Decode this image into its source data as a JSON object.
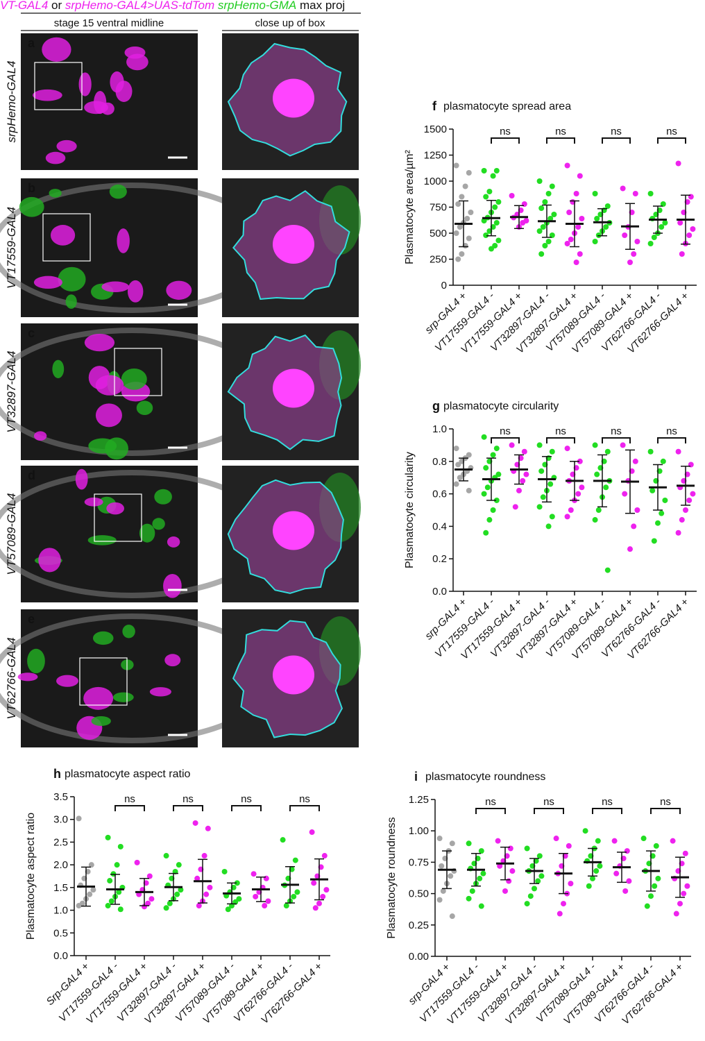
{
  "header": {
    "parts": [
      "VT-GAL4",
      "or",
      "srpHemo-GAL4>UAS-tdTom",
      "srpHemo-GMA",
      "max proj"
    ],
    "column_titles": [
      "stage 15 ventral midline",
      "close up of box"
    ]
  },
  "image_rows": [
    {
      "letter": "a",
      "label": "srpHemo-GAL4"
    },
    {
      "letter": "b",
      "label": "VT17559-GAL4"
    },
    {
      "letter": "c",
      "label": "VT32897-GAL4"
    },
    {
      "letter": "d",
      "label": "VT57089-GAL4"
    },
    {
      "letter": "e",
      "label": "VT62766-GAL4"
    }
  ],
  "chart_data": [
    {
      "type": "dot",
      "panel": "f",
      "title": "plasmatocyte spread area",
      "y_label": "Plasmatocyte area/µm²",
      "categories": [
        "srp-GAL4 +",
        "VT17559-GAL4 -",
        "VT17559-GAL4 +",
        "VT32897-GAL4 -",
        "VT32897-GAL4 +",
        "VT57089-GAL4 -",
        "VT57089-GAL4 +",
        "VT62766-GAL4 -",
        "VT62766-GAL4 +"
      ],
      "colors": [
        "#a6a6a6",
        "#22dd22",
        "#ee22ee",
        "#22dd22",
        "#ee22ee",
        "#22dd22",
        "#ee22ee",
        "#22dd22",
        "#ee22ee"
      ],
      "ylim": [
        0,
        1500
      ],
      "yticks": [
        0,
        250,
        500,
        750,
        1000,
        1250,
        1500
      ],
      "annotations": [
        "ns",
        "ns",
        "ns",
        "ns"
      ],
      "groups": [
        {
          "mean": 590,
          "sd": 220,
          "points": [
            1150,
            1080,
            950,
            850,
            780,
            700,
            640,
            600,
            560,
            500,
            450,
            380,
            300,
            250
          ]
        },
        {
          "mean": 645,
          "sd": 170,
          "points": [
            1100,
            1100,
            1050,
            900,
            850,
            800,
            750,
            700,
            650,
            620,
            600,
            560,
            520,
            480,
            430,
            380,
            350
          ]
        },
        {
          "mean": 655,
          "sd": 110,
          "points": [
            860,
            780,
            720,
            680,
            650,
            620,
            600,
            560
          ]
        },
        {
          "mean": 615,
          "sd": 155,
          "points": [
            1000,
            950,
            880,
            800,
            740,
            680,
            640,
            600,
            560,
            520,
            480,
            420,
            380,
            300
          ]
        },
        {
          "mean": 590,
          "sd": 220,
          "points": [
            1150,
            1050,
            880,
            800,
            700,
            640,
            560,
            500,
            440,
            400,
            300,
            220
          ]
        },
        {
          "mean": 605,
          "sd": 130,
          "points": [
            880,
            760,
            720,
            680,
            640,
            600,
            560,
            520,
            480,
            420
          ]
        },
        {
          "mean": 565,
          "sd": 220,
          "points": [
            930,
            880,
            700,
            560,
            480,
            420,
            300,
            220
          ]
        },
        {
          "mean": 630,
          "sd": 130,
          "points": [
            880,
            780,
            720,
            680,
            640,
            600,
            560,
            500,
            460,
            400
          ]
        },
        {
          "mean": 630,
          "sd": 235,
          "points": [
            1170,
            850,
            800,
            700,
            600,
            540,
            480,
            400,
            300
          ]
        }
      ]
    },
    {
      "type": "dot",
      "panel": "g",
      "title": "plasmatocyte circularity",
      "y_label": "Plasmatocyte circularity",
      "categories": [
        "srp-GAL4 +",
        "VT17559-GAL4 -",
        "VT17559-GAL4 +",
        "VT32897-GAL4 -",
        "VT32897-GAL4 +",
        "VT57089-GAL4 -",
        "VT57089-GAL4 +",
        "VT62766-GAL4 -",
        "VT62766-GAL4 +"
      ],
      "colors": [
        "#a6a6a6",
        "#22dd22",
        "#ee22ee",
        "#22dd22",
        "#ee22ee",
        "#22dd22",
        "#ee22ee",
        "#22dd22",
        "#ee22ee"
      ],
      "ylim": [
        0,
        1
      ],
      "yticks": [
        {
          "value": 0,
          "label": "0.0"
        },
        0.2,
        0.4,
        0.6,
        0.8,
        {
          "value": 1,
          "label": "1.0"
        }
      ],
      "annotations": [
        "ns",
        "ns",
        "ns",
        "ns"
      ],
      "groups": [
        {
          "mean": 0.75,
          "sd": 0.07,
          "points": [
            0.88,
            0.84,
            0.82,
            0.8,
            0.78,
            0.76,
            0.74,
            0.72,
            0.7,
            0.66,
            0.62
          ]
        },
        {
          "mean": 0.69,
          "sd": 0.13,
          "points": [
            0.95,
            0.88,
            0.84,
            0.8,
            0.76,
            0.72,
            0.7,
            0.68,
            0.64,
            0.6,
            0.56,
            0.5,
            0.44,
            0.36
          ]
        },
        {
          "mean": 0.75,
          "sd": 0.09,
          "points": [
            0.9,
            0.86,
            0.82,
            0.78,
            0.74,
            0.72,
            0.68,
            0.62,
            0.52
          ]
        },
        {
          "mean": 0.69,
          "sd": 0.14,
          "points": [
            0.9,
            0.86,
            0.82,
            0.78,
            0.74,
            0.7,
            0.66,
            0.62,
            0.58,
            0.52,
            0.46,
            0.4
          ]
        },
        {
          "mean": 0.68,
          "sd": 0.12,
          "points": [
            0.88,
            0.8,
            0.76,
            0.72,
            0.68,
            0.64,
            0.6,
            0.56,
            0.5,
            0.46
          ]
        },
        {
          "mean": 0.68,
          "sd": 0.16,
          "points": [
            0.9,
            0.86,
            0.8,
            0.76,
            0.72,
            0.68,
            0.64,
            0.58,
            0.5,
            0.44,
            0.13
          ]
        },
        {
          "mean": 0.675,
          "sd": 0.195,
          "points": [
            0.9,
            0.8,
            0.74,
            0.68,
            0.6,
            0.5,
            0.4,
            0.26
          ]
        },
        {
          "mean": 0.64,
          "sd": 0.14,
          "points": [
            0.86,
            0.8,
            0.74,
            0.68,
            0.62,
            0.56,
            0.48,
            0.42,
            0.31
          ]
        },
        {
          "mean": 0.65,
          "sd": 0.12,
          "points": [
            0.86,
            0.78,
            0.72,
            0.68,
            0.64,
            0.6,
            0.56,
            0.5,
            0.44,
            0.36
          ]
        }
      ]
    },
    {
      "type": "dot",
      "panel": "h",
      "title": "plasmatocyte aspect ratio",
      "y_label": "Plasmatocyte aspect ratio",
      "categories": [
        "Srp-GAL4 +",
        "VT17559-GAL4 -",
        "VT17559-GAL4 +",
        "VT32897-GAL4 -",
        "VT32897-GAL4 +",
        "VT57089-GAL4 -",
        "VT57089-GAL4 +",
        "VT62766-GAL4 -",
        "VT62766-GAL4 +"
      ],
      "colors": [
        "#a6a6a6",
        "#22dd22",
        "#ee22ee",
        "#22dd22",
        "#ee22ee",
        "#22dd22",
        "#ee22ee",
        "#22dd22",
        "#ee22ee"
      ],
      "ylim": [
        0,
        3.5
      ],
      "yticks": [
        {
          "value": 0,
          "label": "0.0"
        },
        0.5,
        {
          "value": 1,
          "label": "1.0"
        },
        1.5,
        {
          "value": 2,
          "label": "2.0"
        },
        2.5,
        {
          "value": 3,
          "label": "3.0"
        },
        3.5
      ],
      "annotations": [
        "ns",
        "ns",
        "ns",
        "ns"
      ],
      "groups": [
        {
          "mean": 1.52,
          "sd": 0.43,
          "points": [
            3.02,
            2.0,
            1.85,
            1.7,
            1.55,
            1.45,
            1.35,
            1.25,
            1.15,
            1.1
          ]
        },
        {
          "mean": 1.46,
          "sd": 0.33,
          "points": [
            2.6,
            2.4,
            2.0,
            1.8,
            1.65,
            1.5,
            1.4,
            1.3,
            1.2,
            1.1,
            1.02
          ]
        },
        {
          "mean": 1.4,
          "sd": 0.3,
          "points": [
            2.05,
            1.75,
            1.6,
            1.45,
            1.35,
            1.25,
            1.15,
            1.08
          ]
        },
        {
          "mean": 1.51,
          "sd": 0.3,
          "points": [
            2.2,
            2.0,
            1.85,
            1.7,
            1.55,
            1.45,
            1.35,
            1.25,
            1.15,
            1.05
          ]
        },
        {
          "mean": 1.64,
          "sd": 0.48,
          "points": [
            2.92,
            2.8,
            2.2,
            1.9,
            1.7,
            1.5,
            1.35,
            1.2,
            1.1
          ]
        },
        {
          "mean": 1.37,
          "sd": 0.23,
          "points": [
            1.85,
            1.6,
            1.5,
            1.4,
            1.32,
            1.25,
            1.18,
            1.1,
            1.02
          ]
        },
        {
          "mean": 1.46,
          "sd": 0.27,
          "points": [
            1.8,
            1.7,
            1.5,
            1.4,
            1.3,
            1.2,
            1.1
          ]
        },
        {
          "mean": 1.56,
          "sd": 0.4,
          "points": [
            2.55,
            2.1,
            1.9,
            1.7,
            1.55,
            1.4,
            1.3,
            1.2,
            1.1
          ]
        },
        {
          "mean": 1.68,
          "sd": 0.45,
          "points": [
            2.72,
            2.2,
            1.95,
            1.75,
            1.6,
            1.45,
            1.3,
            1.15,
            1.05
          ]
        }
      ]
    },
    {
      "type": "dot",
      "panel": "i",
      "title": "plasmatocyte roundness",
      "y_label": "Plasmatocyte roundness",
      "categories": [
        "srp-GAL4 +",
        "VT17559-GAL4 -",
        "VT17559-GAL4 +",
        "VT32897-GAL4 -",
        "VT32897-GAL4 +",
        "VT57089-GAL4 -",
        "VT57089-GAL4 +",
        "VT62766-GAL4 -",
        "VT62766-GAL4 +"
      ],
      "colors": [
        "#a6a6a6",
        "#22dd22",
        "#ee22ee",
        "#22dd22",
        "#ee22ee",
        "#22dd22",
        "#ee22ee",
        "#22dd22",
        "#ee22ee"
      ],
      "ylim": [
        0,
        1.25
      ],
      "yticks": [
        {
          "value": 0,
          "label": "0.00"
        },
        0.25,
        {
          "value": 0.5,
          "label": "0.50"
        },
        0.75,
        {
          "value": 1,
          "label": "1.00"
        },
        1.25
      ],
      "annotations": [
        "ns",
        "ns",
        "ns",
        "ns"
      ],
      "groups": [
        {
          "mean": 0.69,
          "sd": 0.15,
          "points": [
            0.94,
            0.9,
            0.84,
            0.78,
            0.72,
            0.68,
            0.64,
            0.58,
            0.52,
            0.45,
            0.32
          ]
        },
        {
          "mean": 0.69,
          "sd": 0.13,
          "points": [
            0.9,
            0.84,
            0.78,
            0.74,
            0.7,
            0.66,
            0.62,
            0.58,
            0.52,
            0.46,
            0.4
          ]
        },
        {
          "mean": 0.74,
          "sd": 0.13,
          "points": [
            0.92,
            0.86,
            0.8,
            0.76,
            0.72,
            0.68,
            0.6,
            0.52
          ]
        },
        {
          "mean": 0.68,
          "sd": 0.1,
          "points": [
            0.86,
            0.8,
            0.76,
            0.72,
            0.68,
            0.64,
            0.6,
            0.54,
            0.48,
            0.42
          ]
        },
        {
          "mean": 0.66,
          "sd": 0.16,
          "points": [
            0.94,
            0.88,
            0.8,
            0.72,
            0.66,
            0.58,
            0.5,
            0.42,
            0.34
          ]
        },
        {
          "mean": 0.75,
          "sd": 0.11,
          "points": [
            1.0,
            0.92,
            0.86,
            0.8,
            0.76,
            0.72,
            0.68,
            0.62,
            0.56
          ]
        },
        {
          "mean": 0.71,
          "sd": 0.12,
          "points": [
            0.92,
            0.84,
            0.78,
            0.72,
            0.66,
            0.6,
            0.52
          ]
        },
        {
          "mean": 0.68,
          "sd": 0.16,
          "points": [
            0.94,
            0.88,
            0.8,
            0.74,
            0.68,
            0.62,
            0.56,
            0.48,
            0.4
          ]
        },
        {
          "mean": 0.63,
          "sd": 0.16,
          "points": [
            0.92,
            0.82,
            0.74,
            0.68,
            0.62,
            0.56,
            0.5,
            0.42,
            0.34
          ]
        }
      ]
    }
  ]
}
